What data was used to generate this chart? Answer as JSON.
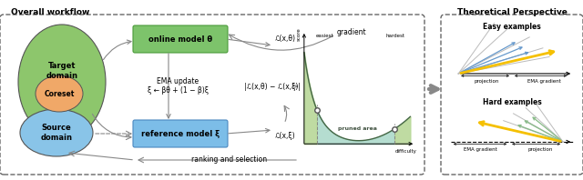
{
  "title_left": "Overall workflow",
  "title_right": "Theoretical Perspective",
  "subtitle_easy": "Easy examples",
  "subtitle_hard": "Hard examples",
  "label_target": "Target\ndomain",
  "label_coreset": "Coreset",
  "label_source": "Source\ndomain",
  "label_online": "online model θ",
  "label_reference": "reference model ξ",
  "label_ema": "EMA update",
  "label_ema_formula": "ξ ← βθ + (1 − β)ξ",
  "label_gradient": "gradient",
  "label_ranking": "ranking and selection",
  "label_pruned": "pruned area",
  "label_easiest": "easiest",
  "label_hardest": "hardest",
  "label_score": "score",
  "label_difficulty": "difficulty",
  "label_projection": "projection",
  "label_ema_gradient": "EMA gradient",
  "label_loss_theta": "ℒ(x,θ)",
  "label_loss_xi": "ℒ(x,ξ)",
  "label_loss_diff": "|ℒ(x,θ) − ℒ(x,ξ)|",
  "color_green_box": "#7DC36B",
  "color_blue_box": "#7CBDE8",
  "color_green_oval": "#8DC66C",
  "color_orange_oval": "#F0A868",
  "color_blue_oval": "#89C4E8",
  "color_curve_fill": "#A8D8C8",
  "color_green_fill": "#B8D898",
  "color_gray_arrow": "#888888",
  "color_dark_gray": "#555555",
  "color_yellow": "#F5C000",
  "color_blue_line": "#6699CC",
  "color_green_line": "#88BB88",
  "color_light_gray": "#AAAAAA",
  "background": "#FFFFFF"
}
